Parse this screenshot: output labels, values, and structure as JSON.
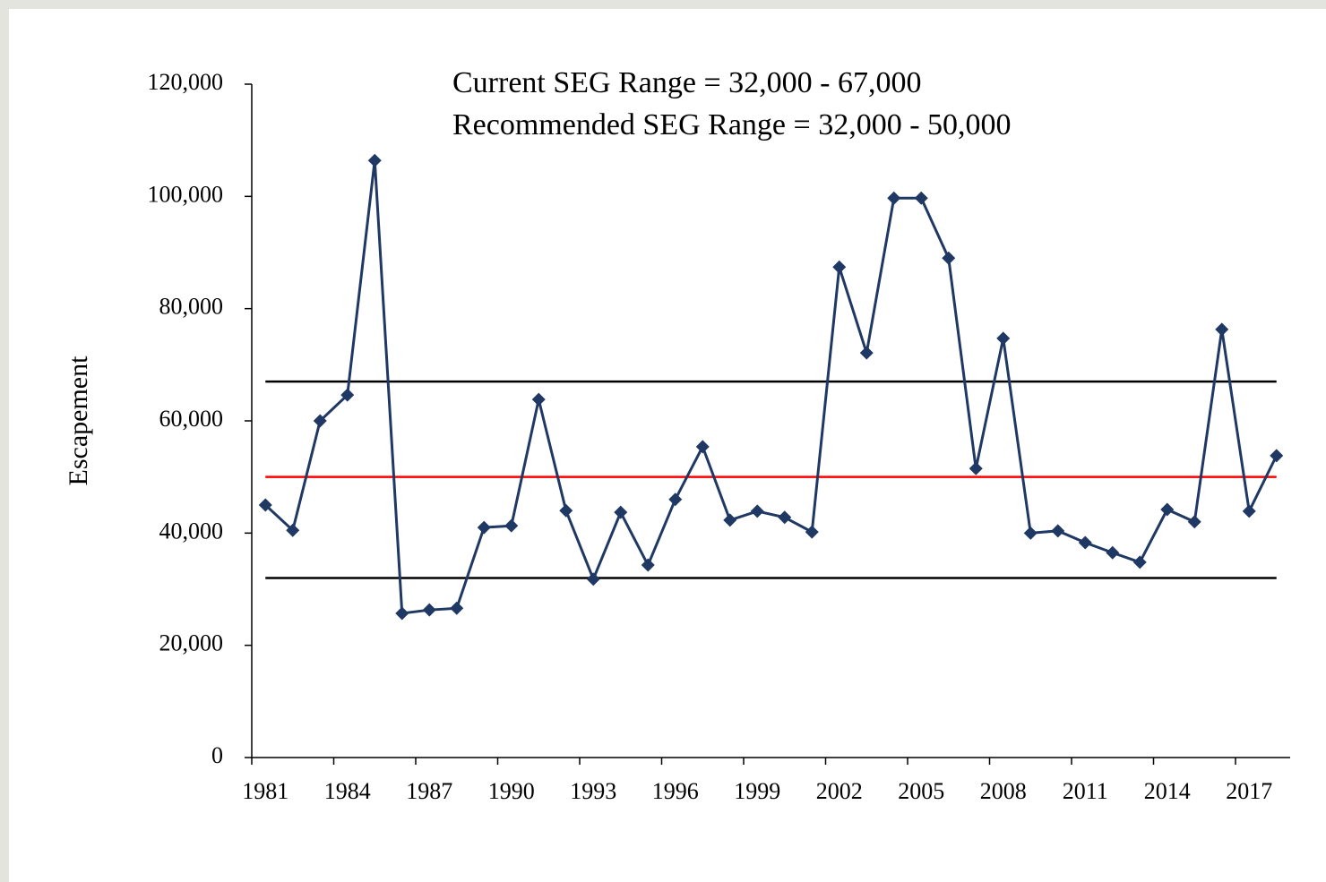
{
  "chart_data": {
    "type": "line",
    "annotations": [
      {
        "text": "Current SEG Range = 32,000 - 67,000",
        "color": "#000000"
      },
      {
        "text": "Recommended SEG Range = 32,000 - 50,000",
        "color": "#ff0000"
      }
    ],
    "y_label": "Escapement",
    "categories": [
      "1981",
      null,
      null,
      "1984",
      null,
      null,
      "1987",
      null,
      null,
      "1990",
      null,
      null,
      "1993",
      null,
      null,
      "1996",
      null,
      null,
      "1999",
      null,
      null,
      "2002",
      null,
      null,
      "2005",
      null,
      null,
      "2008",
      null,
      null,
      "2011",
      null,
      null,
      "2014",
      null,
      null,
      "2017",
      null
    ],
    "series": [
      {
        "name": "Escapement",
        "color": "#1f3864",
        "values": [
          45000,
          40500,
          60000,
          64600,
          106400,
          25700,
          26300,
          26600,
          41000,
          41300,
          63800,
          44000,
          31800,
          43700,
          34300,
          46000,
          55400,
          42300,
          43900,
          42800,
          40200,
          87400,
          72100,
          99700,
          99700,
          89000,
          51500,
          74700,
          40000,
          40400,
          38300,
          36500,
          34800,
          44200,
          42000,
          76300,
          43900,
          53800
        ]
      }
    ],
    "reference_lines": [
      {
        "value": 67000,
        "color": "#000000"
      },
      {
        "value": 50000,
        "color": "#ff0000"
      },
      {
        "value": 32000,
        "color": "#000000"
      }
    ],
    "ylim": [
      0,
      120000
    ],
    "yticks": [
      0,
      {
        "value": 20000,
        "label": "20,000"
      },
      {
        "value": 40000,
        "label": "40,000"
      },
      {
        "value": 60000,
        "label": "60,000"
      },
      {
        "value": 80000,
        "label": "80,000"
      },
      {
        "value": 100000,
        "label": "100,000"
      },
      {
        "value": 120000,
        "label": "120,000"
      }
    ],
    "grid": false
  }
}
